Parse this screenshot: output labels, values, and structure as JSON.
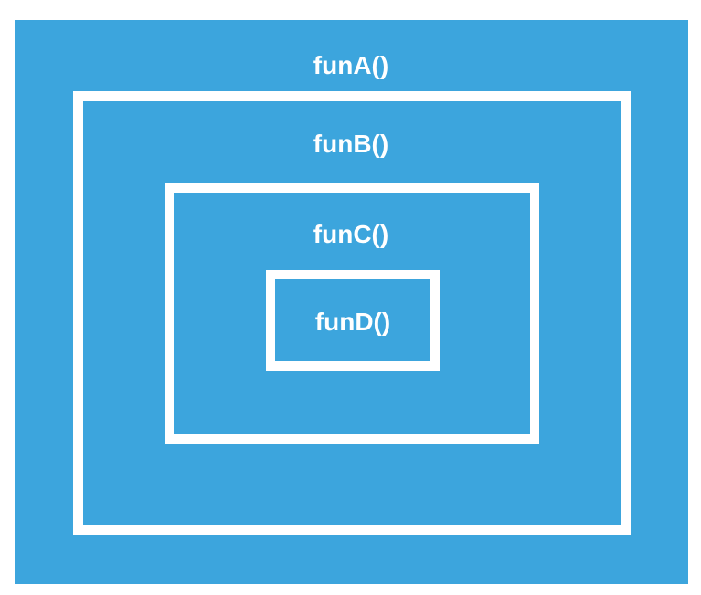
{
  "colors": {
    "background": "#3CA5DD",
    "border": "#FFFFFF",
    "text": "#FFFFFF"
  },
  "boxes": [
    {
      "id": "a",
      "label": "funA()"
    },
    {
      "id": "b",
      "label": "funB()"
    },
    {
      "id": "c",
      "label": "funC()"
    },
    {
      "id": "d",
      "label": "funD()"
    }
  ]
}
